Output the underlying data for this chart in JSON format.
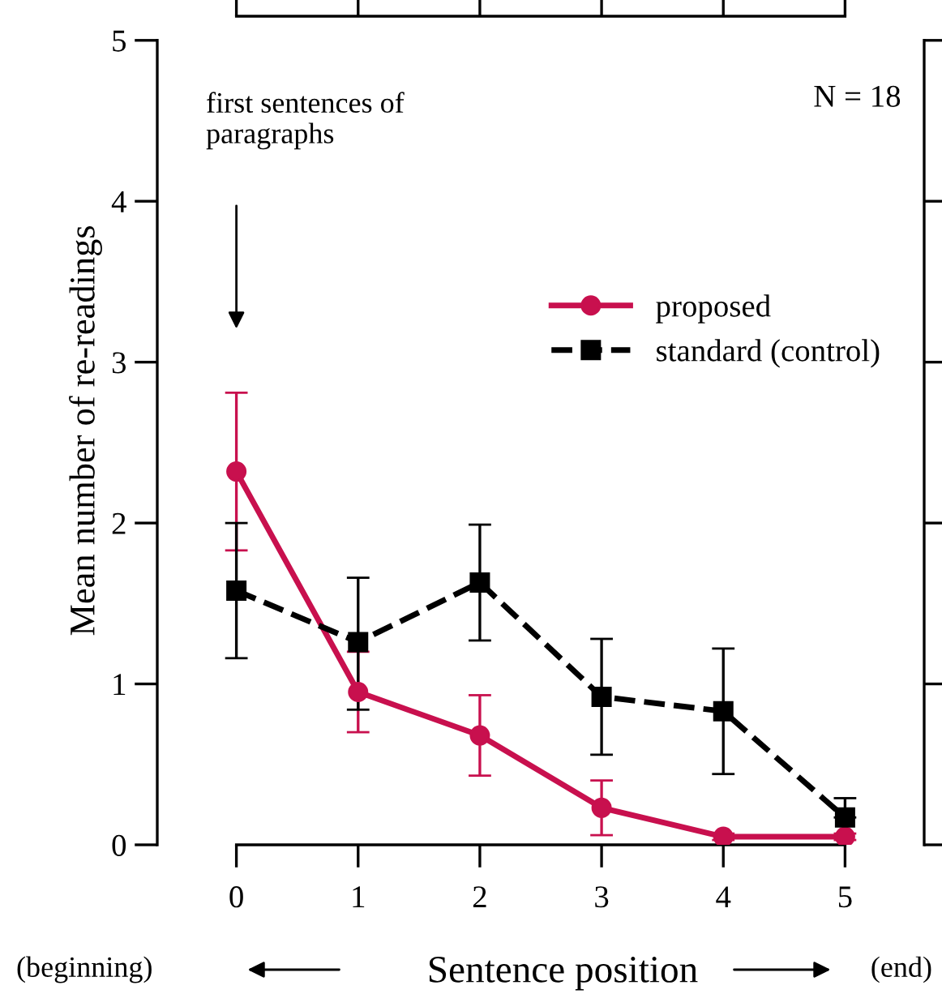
{
  "chart_data": {
    "type": "line",
    "xlabel": "Sentence position",
    "ylabel": "Mean number of re-readings",
    "x": [
      0,
      1,
      2,
      3,
      4,
      5
    ],
    "xlim": [
      -0.65,
      5.65
    ],
    "ylim": [
      0,
      5.15
    ],
    "xticks": [
      0,
      1,
      2,
      3,
      4,
      5
    ],
    "yticks": [
      0,
      1,
      2,
      3,
      4,
      5
    ],
    "grid": false,
    "legend": "right",
    "series": [
      {
        "name": "proposed",
        "color": "#c8104e",
        "marker": "circle",
        "line_style": "solid",
        "values": [
          2.32,
          0.95,
          0.68,
          0.23,
          0.05,
          0.05
        ],
        "errors": [
          [
            1.83,
            2.81
          ],
          [
            0.7,
            1.2
          ],
          [
            0.43,
            0.93
          ],
          [
            0.06,
            0.4
          ],
          [
            0.03,
            0.07
          ],
          [
            0.03,
            0.07
          ]
        ]
      },
      {
        "name": "standard (control)",
        "color": "#000000",
        "marker": "square",
        "line_style": "dashed",
        "values": [
          1.58,
          1.26,
          1.63,
          0.92,
          0.83,
          0.17
        ],
        "errors": [
          [
            1.16,
            2.0
          ],
          [
            0.84,
            1.66
          ],
          [
            1.27,
            1.99
          ],
          [
            0.56,
            1.28
          ],
          [
            0.44,
            1.22
          ],
          [
            0.17,
            0.29
          ]
        ]
      }
    ],
    "annotations": [
      "first sentences of\nparagraphs",
      "N = 18",
      "(beginning)",
      "(end)"
    ]
  }
}
